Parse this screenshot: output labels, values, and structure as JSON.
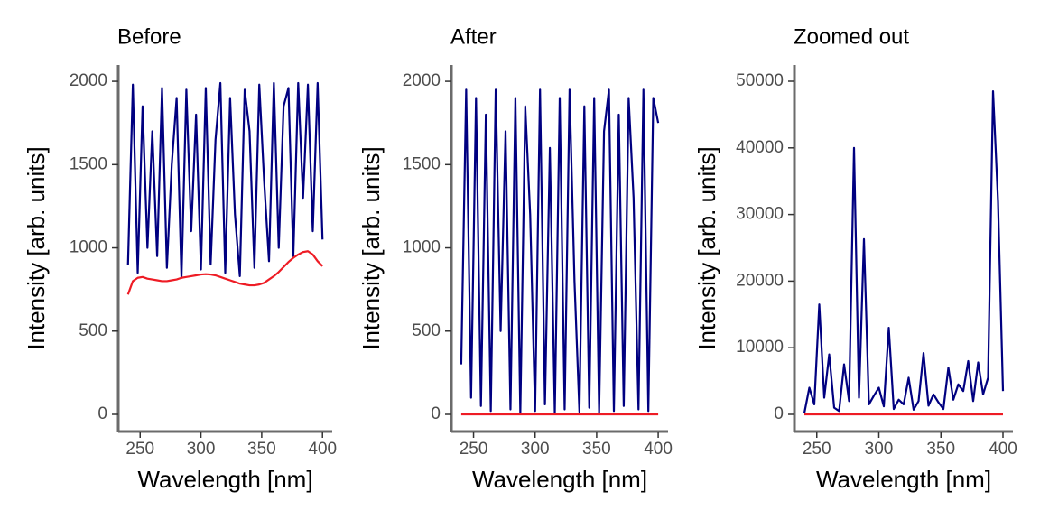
{
  "chart_data": [
    {
      "type": "line",
      "title": "Before",
      "x_label": "Wavelength [nm]",
      "y_label": "Intensity [arb. units]",
      "x": [
        240,
        244,
        248,
        252,
        256,
        260,
        264,
        268,
        272,
        276,
        280,
        284,
        288,
        292,
        296,
        300,
        304,
        308,
        312,
        316,
        320,
        324,
        328,
        332,
        336,
        340,
        344,
        348,
        352,
        356,
        360,
        364,
        368,
        372,
        376,
        380,
        384,
        388,
        392,
        396,
        400
      ],
      "series": [
        {
          "color": "#000080",
          "values": [
            900,
            1980,
            850,
            1850,
            1000,
            1700,
            950,
            1960,
            880,
            1500,
            1900,
            820,
            1950,
            1100,
            1800,
            870,
            1960,
            900,
            1650,
            1990,
            850,
            1900,
            1200,
            830,
            1950,
            1700,
            880,
            1980,
            1400,
            920,
            1990,
            1000,
            1850,
            1960,
            950,
            1990,
            1300,
            1980,
            1100,
            1990,
            1050
          ]
        },
        {
          "color": "#ee1c25",
          "values": [
            720,
            800,
            820,
            825,
            815,
            810,
            805,
            800,
            800,
            805,
            810,
            820,
            825,
            830,
            835,
            840,
            842,
            840,
            835,
            825,
            815,
            805,
            795,
            785,
            780,
            775,
            775,
            780,
            790,
            810,
            830,
            855,
            885,
            915,
            940,
            960,
            975,
            980,
            960,
            920,
            890
          ]
        }
      ],
      "xlim": [
        232,
        408
      ],
      "xticks": [
        250,
        300,
        350,
        400
      ],
      "ylim": [
        -103,
        2098
      ],
      "yticks": [
        0,
        500,
        1000,
        1500,
        2000
      ]
    },
    {
      "type": "line",
      "title": "After",
      "x_label": "Wavelength [nm]",
      "y_label": "Intensity [arb. units]",
      "x": [
        240,
        244,
        248,
        252,
        256,
        260,
        264,
        268,
        272,
        276,
        280,
        284,
        288,
        292,
        296,
        300,
        304,
        308,
        312,
        316,
        320,
        324,
        328,
        332,
        336,
        340,
        344,
        348,
        352,
        356,
        360,
        364,
        368,
        372,
        376,
        380,
        384,
        388,
        392,
        396,
        400
      ],
      "series": [
        {
          "color": "#000080",
          "values": [
            300,
            1950,
            100,
            1900,
            50,
            1800,
            20,
            1950,
            500,
            1700,
            30,
            1900,
            10,
            1850,
            1200,
            20,
            1950,
            60,
            1600,
            10,
            1900,
            30,
            1950,
            800,
            15,
            1850,
            40,
            1900,
            10,
            1700,
            1950,
            20,
            1800,
            50,
            1900,
            1300,
            30,
            1950,
            20,
            1900,
            1750
          ]
        },
        {
          "color": "#ee1c25",
          "values": [
            0,
            0,
            0,
            0,
            0,
            0,
            0,
            0,
            0,
            0,
            0,
            0,
            0,
            0,
            0,
            0,
            0,
            0,
            0,
            0,
            0,
            0,
            0,
            0,
            0,
            0,
            0,
            0,
            0,
            0,
            0,
            0,
            0,
            0,
            0,
            0,
            0,
            0,
            0,
            0,
            0
          ]
        }
      ],
      "xlim": [
        232,
        408
      ],
      "xticks": [
        250,
        300,
        350,
        400
      ],
      "ylim": [
        -103,
        2098
      ],
      "yticks": [
        0,
        500,
        1000,
        1500,
        2000
      ]
    },
    {
      "type": "line",
      "title": "Zoomed out",
      "x_label": "Wavelength [nm]",
      "y_label": "Intensity [arb. units]",
      "x": [
        240,
        244,
        248,
        252,
        256,
        260,
        264,
        268,
        272,
        276,
        280,
        284,
        288,
        292,
        296,
        300,
        304,
        308,
        312,
        316,
        320,
        324,
        328,
        332,
        336,
        340,
        344,
        348,
        352,
        356,
        360,
        364,
        368,
        372,
        376,
        380,
        384,
        388,
        392,
        396,
        400
      ],
      "series": [
        {
          "color": "#000080",
          "values": [
            200,
            4000,
            1500,
            16500,
            2500,
            9000,
            1000,
            500,
            7500,
            2000,
            40000,
            2500,
            26300,
            1500,
            2800,
            4000,
            1200,
            13000,
            800,
            2200,
            1500,
            5500,
            700,
            2000,
            9200,
            1300,
            3000,
            1800,
            800,
            7000,
            2200,
            4500,
            3500,
            8000,
            2000,
            7800,
            3000,
            5500,
            48500,
            32000,
            3500
          ]
        },
        {
          "color": "#ee1c25",
          "values": [
            0,
            0,
            0,
            0,
            0,
            0,
            0,
            0,
            0,
            0,
            0,
            0,
            0,
            0,
            0,
            0,
            0,
            0,
            0,
            0,
            0,
            0,
            0,
            0,
            0,
            0,
            0,
            0,
            0,
            0,
            0,
            0,
            0,
            0,
            0,
            0,
            0,
            0,
            0,
            0,
            0
          ]
        }
      ],
      "xlim": [
        232,
        408
      ],
      "xticks": [
        250,
        300,
        350,
        400
      ],
      "ylim": [
        -2575,
        52440
      ],
      "yticks": [
        0,
        10000,
        20000,
        30000,
        40000,
        50000
      ]
    }
  ]
}
